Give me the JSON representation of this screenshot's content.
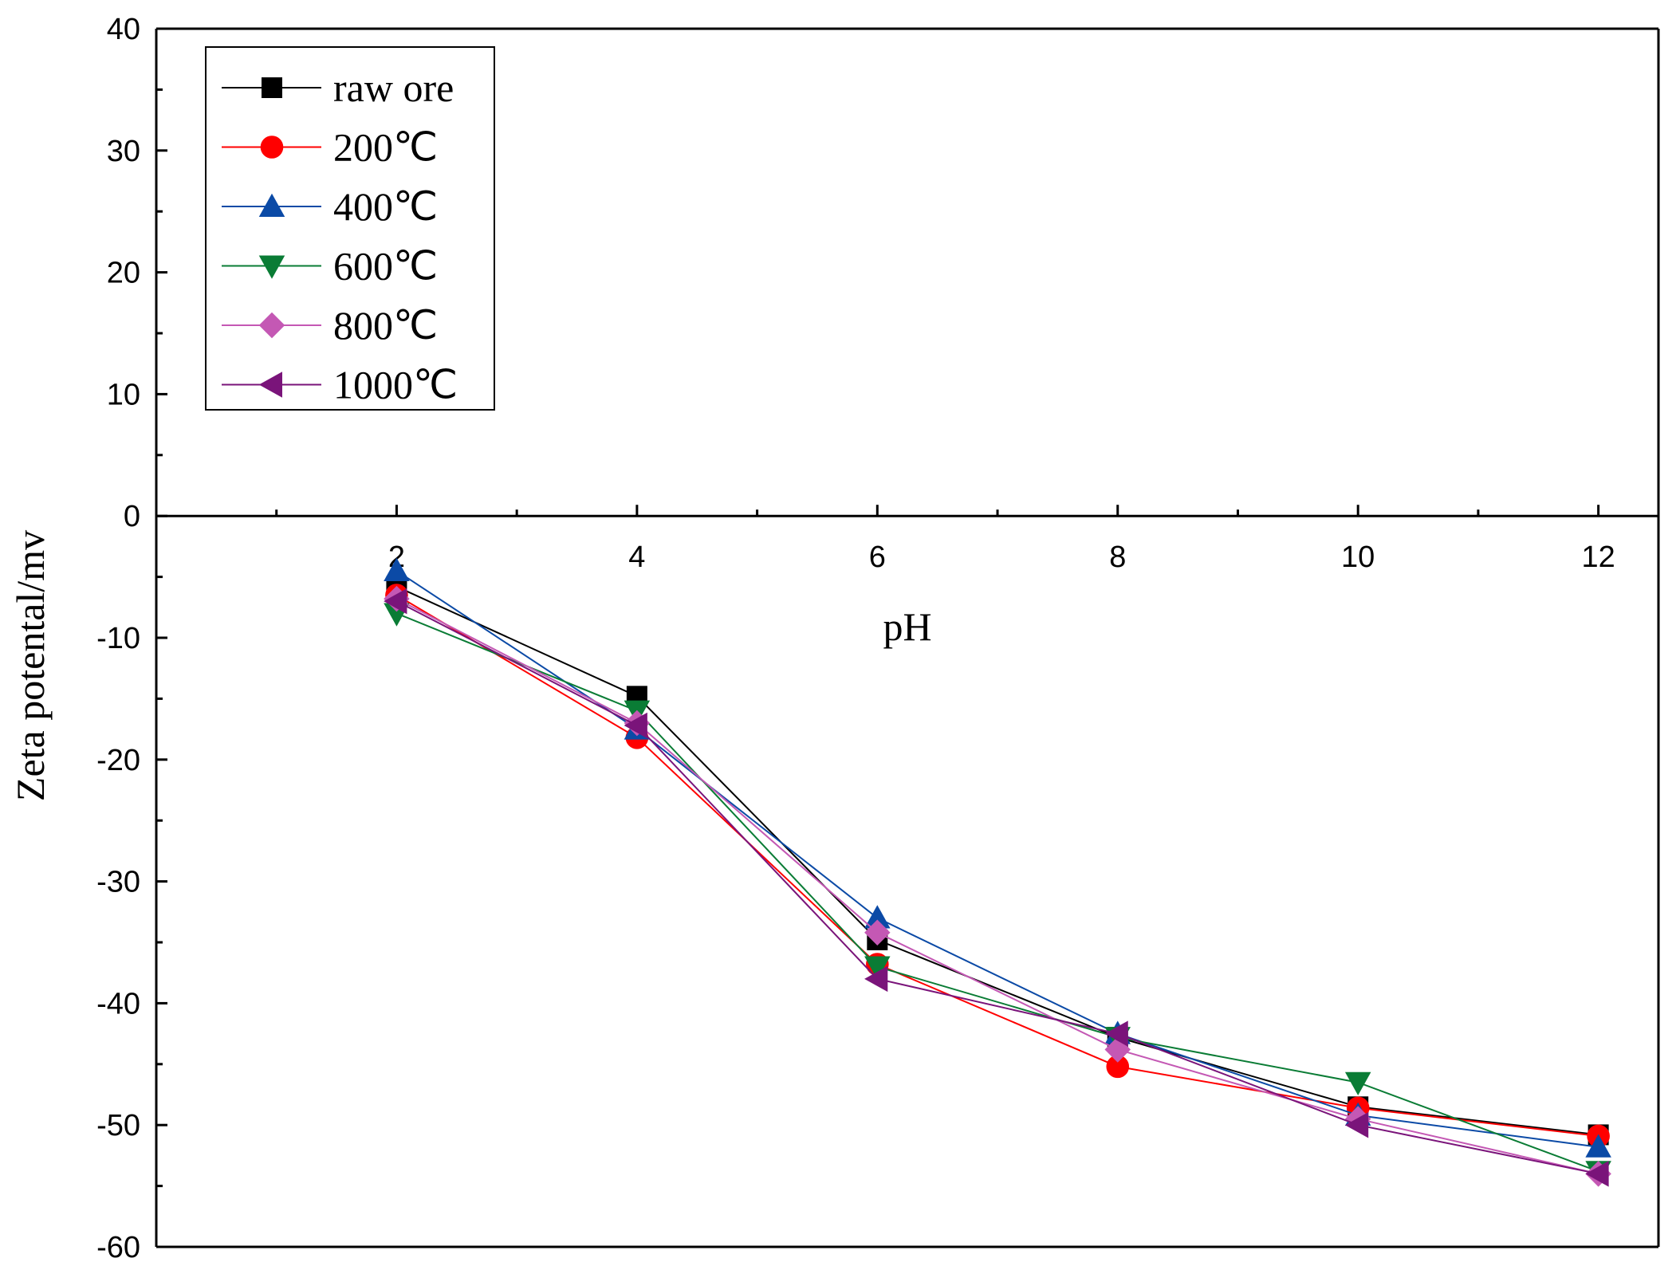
{
  "chart_data": {
    "type": "line",
    "title": "",
    "xlabel": "pH",
    "ylabel": "Zeta potental/mv",
    "xlim": [
      0,
      12.5
    ],
    "ylim": [
      -60,
      40
    ],
    "x_ticks": [
      2,
      4,
      6,
      8,
      10,
      12
    ],
    "y_ticks": [
      -60,
      -50,
      -40,
      -30,
      -20,
      -10,
      0,
      10,
      20,
      30,
      40
    ],
    "legend_position": "top-left",
    "grid": false,
    "x": [
      2,
      4,
      6,
      8,
      10,
      12
    ],
    "series": [
      {
        "name": "raw ore",
        "marker": "square",
        "color": "#000000",
        "values": [
          -5.8,
          -14.8,
          -34.8,
          -42.8,
          -48.5,
          -50.8
        ]
      },
      {
        "name": "200℃",
        "marker": "circle",
        "color": "#ff0000",
        "values": [
          -6.5,
          -18.2,
          -36.8,
          -45.2,
          -48.6,
          -50.9
        ]
      },
      {
        "name": "400℃",
        "marker": "triangle-up",
        "color": "#0b4aa6",
        "values": [
          -4.5,
          -17.5,
          -33.0,
          -42.5,
          -49.2,
          -51.8
        ]
      },
      {
        "name": "600℃",
        "marker": "triangle-down",
        "color": "#0a7c35",
        "values": [
          -8.0,
          -16.0,
          -37.0,
          -42.8,
          -46.5,
          -53.8
        ]
      },
      {
        "name": "800℃",
        "marker": "diamond",
        "color": "#c458b4",
        "values": [
          -6.8,
          -17.0,
          -34.2,
          -43.8,
          -49.5,
          -54.0
        ]
      },
      {
        "name": "1000℃",
        "marker": "triangle-left",
        "color": "#7a147a",
        "values": [
          -7.0,
          -17.2,
          -38.0,
          -42.5,
          -50.0,
          -54.0
        ]
      }
    ]
  }
}
